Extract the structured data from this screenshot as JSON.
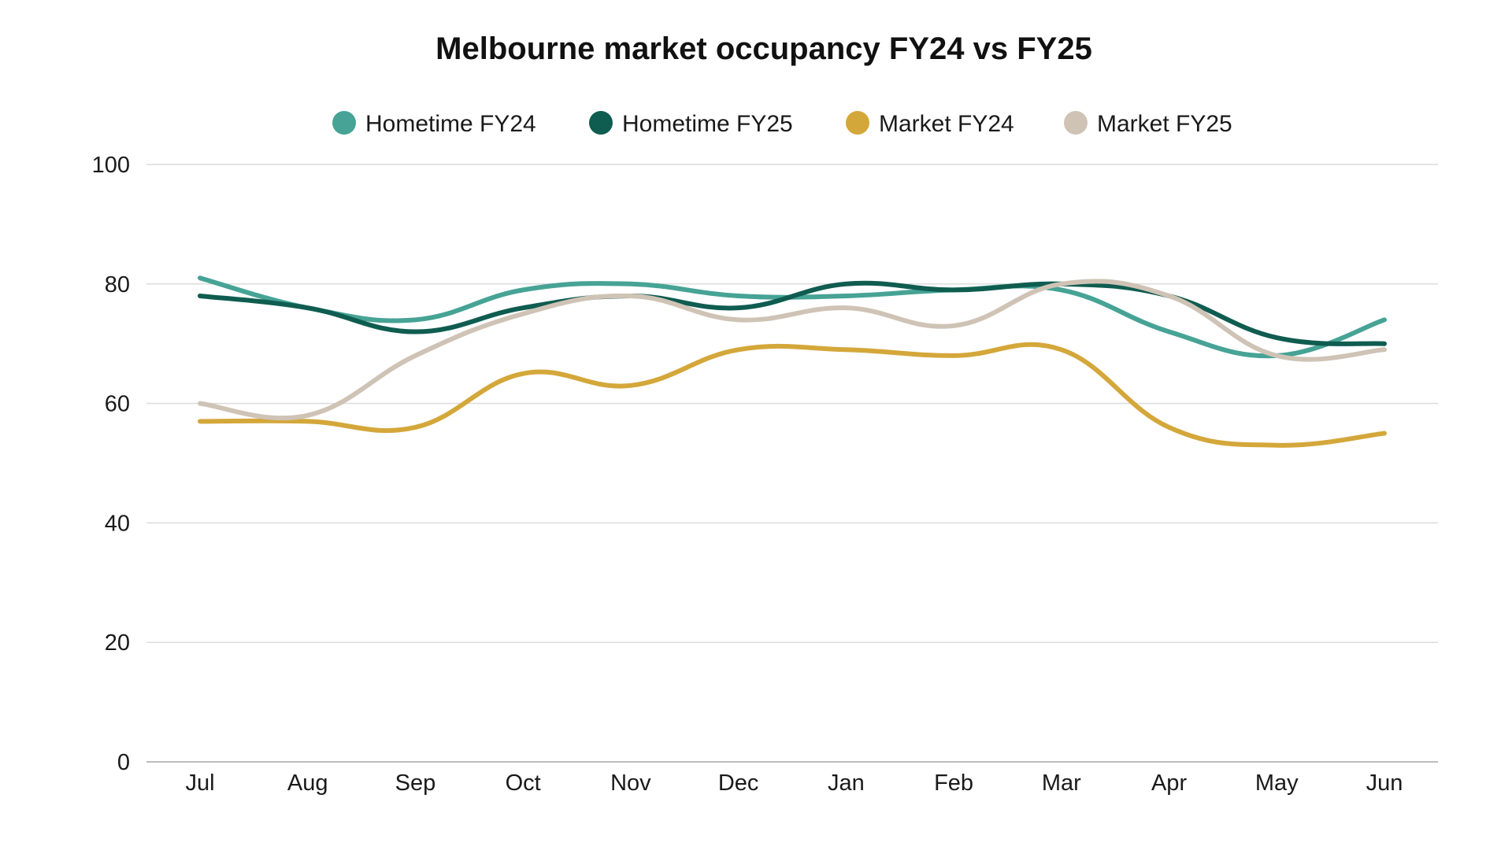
{
  "chart_data": {
    "type": "line",
    "title": "Melbourne market occupancy FY24 vs FY25",
    "xlabel": "",
    "ylabel": "",
    "categories": [
      "Jul",
      "Aug",
      "Sep",
      "Oct",
      "Nov",
      "Dec",
      "Jan",
      "Feb",
      "Mar",
      "Apr",
      "May",
      "Jun"
    ],
    "ylim": [
      0,
      100
    ],
    "yticks": [
      "0",
      "20",
      "40",
      "60",
      "80",
      "100"
    ],
    "grid": true,
    "legend_position": "top-center",
    "series": [
      {
        "name": "Hometime FY24",
        "color": "#46A395",
        "values": [
          81,
          76,
          74,
          79,
          80,
          78,
          78,
          79,
          79,
          72,
          68,
          74
        ]
      },
      {
        "name": "Hometime FY25",
        "color": "#0F5C50",
        "values": [
          78,
          76,
          72,
          76,
          78,
          76,
          80,
          79,
          80,
          78,
          71,
          70
        ]
      },
      {
        "name": "Market FY24",
        "color": "#D4A73A",
        "values": [
          57,
          57,
          56,
          65,
          63,
          69,
          69,
          68,
          69,
          56,
          53,
          55
        ]
      },
      {
        "name": "Market FY25",
        "color": "#CFC3B5",
        "values": [
          60,
          58,
          68,
          75,
          78,
          74,
          76,
          73,
          80,
          78,
          68,
          69
        ]
      }
    ]
  }
}
